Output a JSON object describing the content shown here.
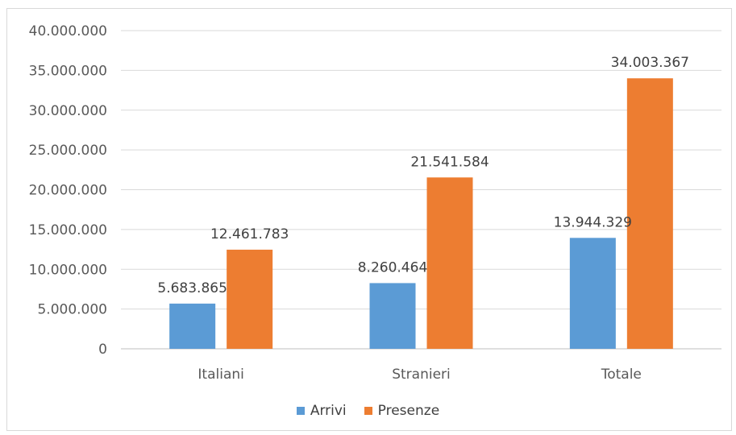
{
  "chart_data": {
    "type": "bar",
    "categories": [
      "Italiani",
      "Stranieri",
      "Totale"
    ],
    "series": [
      {
        "name": "Arrivi",
        "color": "#5b9bd5",
        "values": [
          5683865,
          8260464,
          13944329
        ]
      },
      {
        "name": "Presenze",
        "color": "#ed7d31",
        "values": [
          12461783,
          21541584,
          34003367
        ]
      }
    ],
    "data_labels": [
      [
        "5.683.865",
        "8.260.464",
        "13.944.329"
      ],
      [
        "12.461.783",
        "21.541.584",
        "34.003.367"
      ]
    ],
    "ylim": [
      0,
      40000000
    ],
    "ytick_values": [
      0,
      5000000,
      10000000,
      15000000,
      20000000,
      25000000,
      30000000,
      35000000,
      40000000
    ],
    "ytick_labels": [
      "0",
      "5.000.000",
      "10.000.000",
      "15.000.000",
      "20.000.000",
      "25.000.000",
      "30.000.000",
      "35.000.000",
      "40.000.000"
    ],
    "grid": true,
    "legend_position": "bottom"
  }
}
